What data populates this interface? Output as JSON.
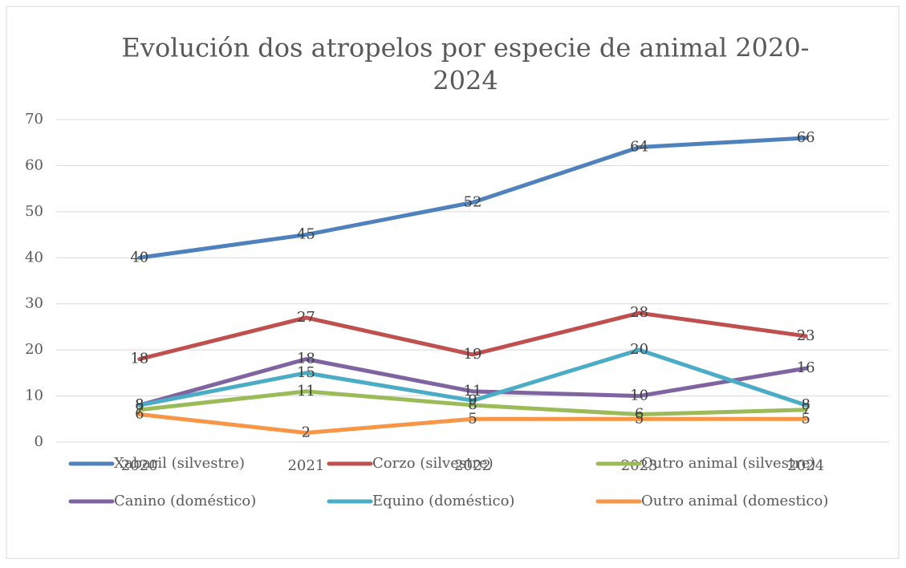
{
  "chart_data": {
    "type": "line",
    "title_lines": [
      "Evolución dos atropelos por especie de animal 2020-",
      "2024"
    ],
    "categories": [
      "2020",
      "2021",
      "2022",
      "2023",
      "2024"
    ],
    "series": [
      {
        "name": "Xabaril (silvestre)",
        "color": "#4f81bd",
        "values": [
          40,
          45,
          52,
          64,
          66
        ]
      },
      {
        "name": "Corzo (silvestre)",
        "color": "#c0504d",
        "values": [
          18,
          27,
          19,
          28,
          23
        ]
      },
      {
        "name": "Outro animal (silvestre)",
        "color": "#9bbb59",
        "values": [
          7,
          11,
          8,
          6,
          7
        ]
      },
      {
        "name": "Canino (doméstico)",
        "color": "#8064a2",
        "values": [
          8,
          18,
          11,
          10,
          16
        ]
      },
      {
        "name": "Equino (doméstico)",
        "color": "#4bacc6",
        "values": [
          8,
          15,
          9,
          20,
          8
        ]
      },
      {
        "name": "Outro animal (domestico)",
        "color": "#f79646",
        "values": [
          6,
          2,
          5,
          5,
          5
        ]
      }
    ],
    "ylim": [
      0,
      70
    ],
    "yticks": [
      0,
      10,
      20,
      30,
      40,
      50,
      60,
      70
    ],
    "grid": true,
    "data_labels": true,
    "legend": "bottom"
  }
}
